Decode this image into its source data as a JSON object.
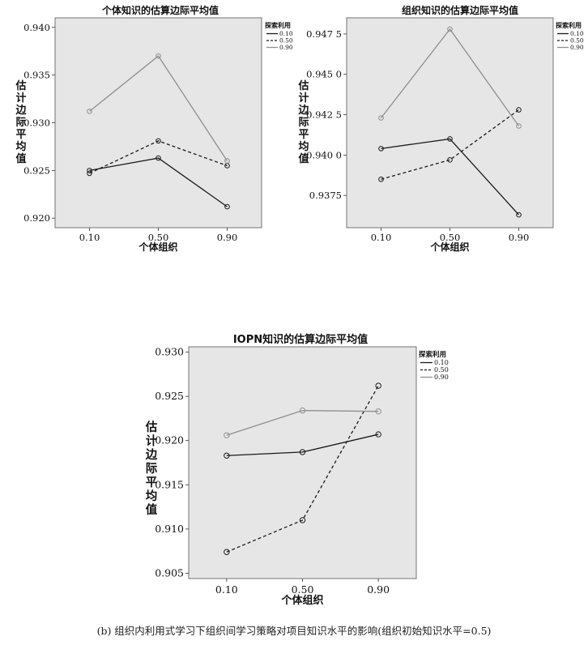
{
  "caption": "(b) 组织内利用式学习下组织间学习策略对项目知识水平的影响(组织初始知识水平=0.5)",
  "legend": {
    "title": "探索利用",
    "entries": [
      "0.10",
      "0.50",
      "0.90"
    ]
  },
  "colors": {
    "background": "#e6e6e6",
    "series_0_10": "#1a1a1a",
    "series_0_50": "#1a1a1a",
    "series_0_90": "#8f8f8f"
  },
  "chart_data": [
    {
      "type": "line",
      "title": "个体知识的估算边际平均值",
      "xlabel": "个体组织",
      "ylabel": "估计边际平均值",
      "categories": [
        "0.10",
        "0.50",
        "0.90"
      ],
      "ylim": [
        0.919,
        0.941
      ],
      "yticks": [
        0.92,
        0.925,
        0.93,
        0.935,
        0.94
      ],
      "ytick_labels": [
        "0.920",
        "0.925",
        "0.930",
        "0.935",
        "0.940"
      ],
      "grid": false,
      "legend_position": "right",
      "series": [
        {
          "name": "0.10",
          "values": [
            0.925,
            0.9263,
            0.9212
          ],
          "style": "solid"
        },
        {
          "name": "0.50",
          "values": [
            0.9247,
            0.9281,
            0.9255
          ],
          "style": "dashed"
        },
        {
          "name": "0.90",
          "values": [
            0.9312,
            0.937,
            0.926
          ],
          "style": "solid-gray"
        }
      ]
    },
    {
      "type": "line",
      "title": "组织知识的估算边际平均值",
      "xlabel": "个体组织",
      "ylabel": "估计边际平均值",
      "categories": [
        "0.10",
        "0.50",
        "0.90"
      ],
      "ylim": [
        0.9355,
        0.9485
      ],
      "yticks": [
        0.9375,
        0.94,
        0.9425,
        0.945,
        0.9475
      ],
      "ytick_labels": [
        "0.9375",
        "0.940 0",
        "0.942 5",
        "0.945 0",
        "0.947 5"
      ],
      "grid": false,
      "legend_position": "right",
      "series": [
        {
          "name": "0.10",
          "values": [
            0.9404,
            0.941,
            0.9363
          ],
          "style": "solid"
        },
        {
          "name": "0.50",
          "values": [
            0.9385,
            0.9397,
            0.9428
          ],
          "style": "dashed"
        },
        {
          "name": "0.90",
          "values": [
            0.9423,
            0.9478,
            0.9418
          ],
          "style": "solid-gray"
        }
      ]
    },
    {
      "type": "line",
      "title": "IOPN知识的估算边际平均值",
      "xlabel": "个体组织",
      "ylabel": "估计边际平均值",
      "categories": [
        "0.10",
        "0.50",
        "0.90"
      ],
      "ylim": [
        0.9044,
        0.9306
      ],
      "yticks": [
        0.905,
        0.91,
        0.915,
        0.92,
        0.925,
        0.93
      ],
      "ytick_labels": [
        "0.905",
        "0.910",
        "0.915",
        "0.920",
        "0.925",
        "0.930"
      ],
      "grid": false,
      "legend_position": "right",
      "series": [
        {
          "name": "0.10",
          "values": [
            0.9183,
            0.9187,
            0.9207
          ],
          "style": "solid"
        },
        {
          "name": "0.50",
          "values": [
            0.9074,
            0.911,
            0.9262
          ],
          "style": "dashed"
        },
        {
          "name": "0.90",
          "values": [
            0.9206,
            0.9234,
            0.9233
          ],
          "style": "solid-gray"
        }
      ]
    }
  ]
}
